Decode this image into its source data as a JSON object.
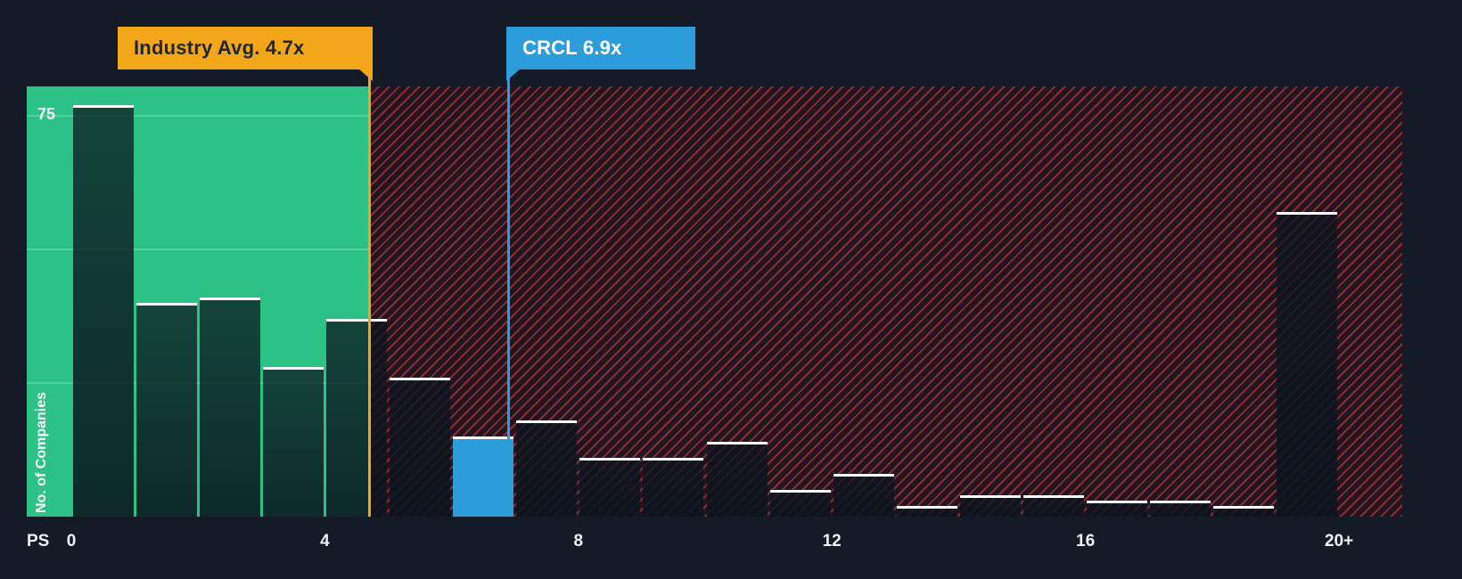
{
  "chart_data": {
    "type": "bar",
    "title": "",
    "ylabel": "No. of Companies",
    "y_tick": {
      "label": "75",
      "value": 75
    },
    "ylim": [
      0,
      80
    ],
    "gridline_values": [
      25,
      50,
      75
    ],
    "x_axis": {
      "prefix_label": "PS",
      "ticks": [
        {
          "label": "0",
          "value": 0
        },
        {
          "label": "4",
          "value": 4
        },
        {
          "label": "8",
          "value": 8
        },
        {
          "label": "12",
          "value": 12
        },
        {
          "label": "16",
          "value": 16
        },
        {
          "label": "20+",
          "value": 20
        }
      ]
    },
    "categories": [
      "0-1",
      "1-2",
      "2-3",
      "3-4",
      "4-5",
      "5-6",
      "6-7",
      "7-8",
      "8-9",
      "9-10",
      "10-11",
      "11-12",
      "12-13",
      "13-14",
      "14-15",
      "15-16",
      "16-17",
      "17-18",
      "18-19",
      "20+"
    ],
    "values": [
      77,
      40,
      41,
      28,
      37,
      26,
      15,
      18,
      11,
      11,
      14,
      5,
      8,
      2,
      4,
      4,
      3,
      3,
      2,
      57
    ],
    "highlight": {
      "index": 6,
      "name": "CRCL"
    },
    "markers": [
      {
        "name": "industry-avg",
        "label": "Industry Avg. 4.7x",
        "value": 4.7,
        "color": "#F2A71B",
        "text_color": "#1F2631"
      },
      {
        "name": "crcl",
        "label": "CRCL 6.9x",
        "value": 6.9,
        "color": "#2D9CDB",
        "text_color": "#FFFFFF"
      }
    ],
    "zones": [
      {
        "name": "below-industry-avg",
        "from": 0,
        "to": 4.7,
        "style": "solid-green",
        "color": "#2CC185"
      },
      {
        "name": "above-industry-avg",
        "from": 4.7,
        "to": 21,
        "style": "hatched-red",
        "color": "#E6483C"
      }
    ],
    "legend": null
  },
  "colors": {
    "background": "#141B26",
    "zone_green": "#2CC185",
    "hatch_stripe": "#E6483C",
    "bar_top_edge": "#FFFFFF",
    "highlight_bar": "#2D9CDB",
    "industry_marker": "#F2A71B",
    "company_marker": "#2D9CDB",
    "axis_text": "#FFFFFF"
  }
}
